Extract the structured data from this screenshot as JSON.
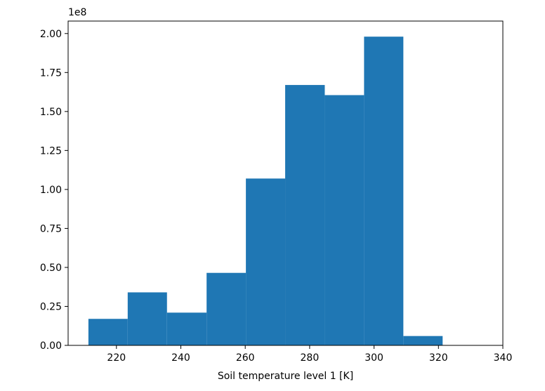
{
  "chart_data": {
    "type": "histogram",
    "title": "",
    "xlabel": "Soil temperature level 1 [K]",
    "ylabel": "",
    "y_offset_label": "1e8",
    "y_scale": 100000000,
    "xlim": [
      205,
      340
    ],
    "ylim": [
      0,
      2.08
    ],
    "xticks": [
      220,
      240,
      260,
      280,
      300,
      320,
      340
    ],
    "yticks": [
      0.0,
      0.25,
      0.5,
      0.75,
      1.0,
      1.25,
      1.5,
      1.75,
      2.0
    ],
    "ytick_labels": [
      "0.00",
      "0.25",
      "0.50",
      "0.75",
      "1.00",
      "1.25",
      "1.50",
      "1.75",
      "2.00"
    ],
    "bin_edges": [
      211.3,
      223.5,
      235.7,
      248.0,
      260.2,
      272.4,
      284.7,
      296.9,
      309.1,
      321.3,
      333.6
    ],
    "values": [
      0.17,
      0.34,
      0.21,
      0.465,
      1.07,
      1.67,
      1.605,
      1.98,
      0.06,
      0.0
    ],
    "bar_color": "#1f77b4",
    "grid": false,
    "legend": "none"
  }
}
